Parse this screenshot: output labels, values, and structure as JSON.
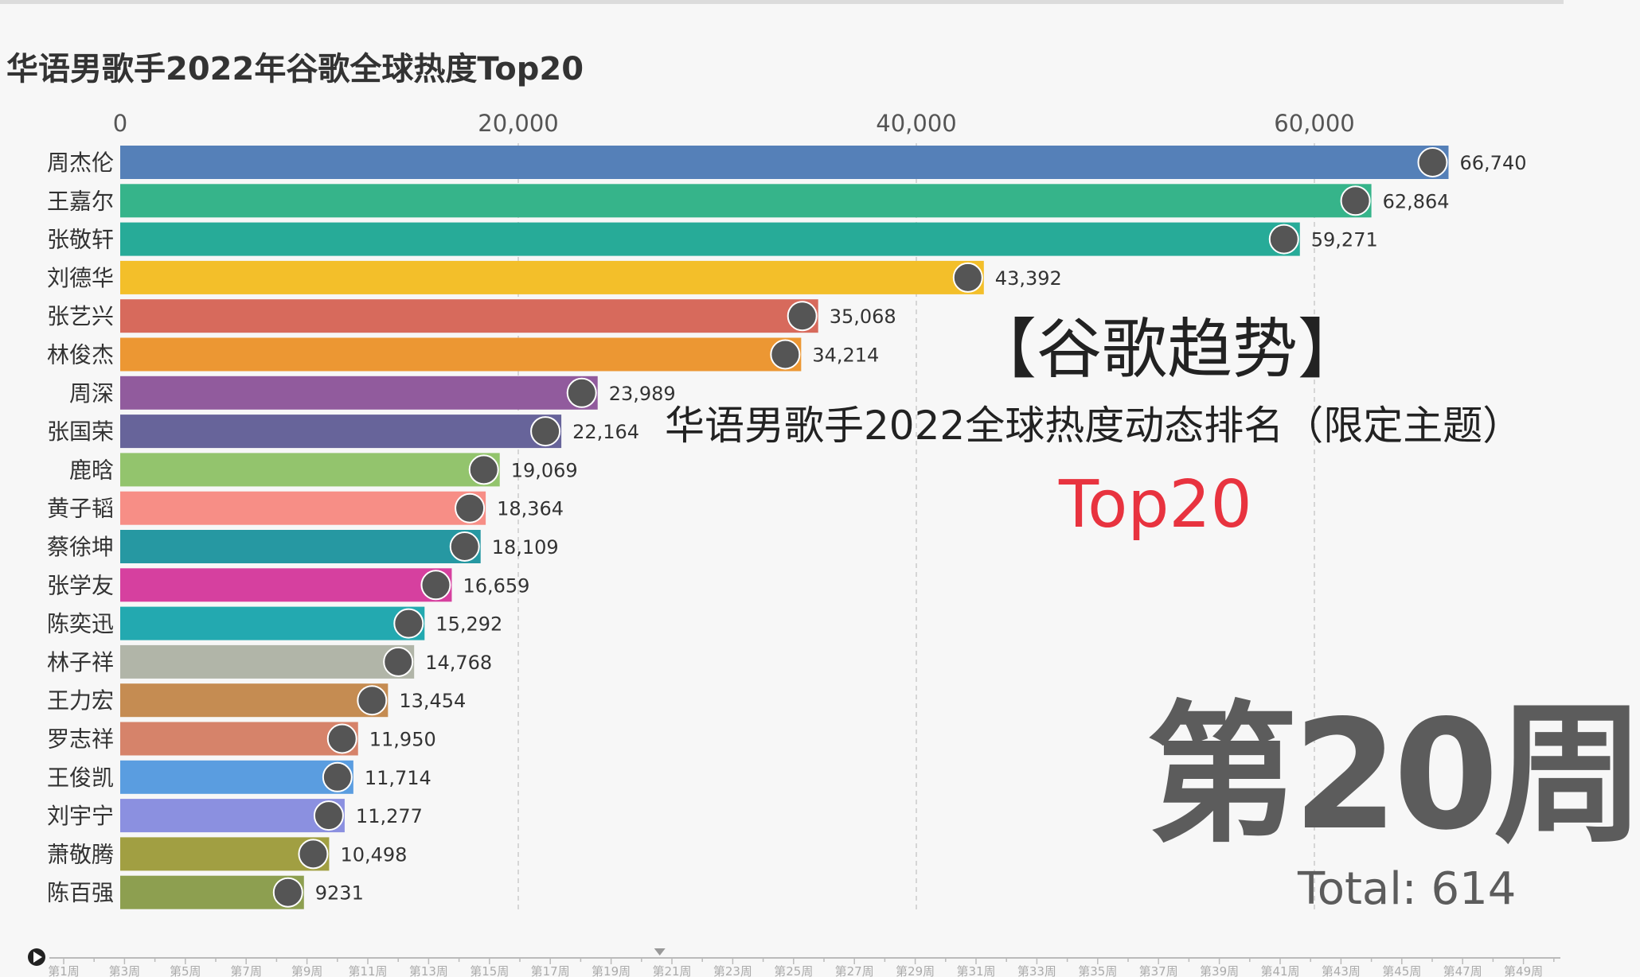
{
  "chart_data": {
    "type": "bar",
    "orientation": "horizontal",
    "title": "华语男歌手2022年谷歌全球热度Top20",
    "xlim": [
      0,
      70000
    ],
    "x_ticks": [
      0,
      20000,
      40000,
      60000
    ],
    "x_tick_labels": [
      "0",
      "20,000",
      "40,000",
      "60,000"
    ],
    "grid": true,
    "categories": [
      "周杰伦",
      "王嘉尔",
      "张敬轩",
      "刘德华",
      "张艺兴",
      "林俊杰",
      "周深",
      "张国荣",
      "鹿晗",
      "黄子韬",
      "蔡徐坤",
      "张学友",
      "陈奕迅",
      "林子祥",
      "王力宏",
      "罗志祥",
      "王俊凯",
      "刘宇宁",
      "萧敬腾",
      "陈百强"
    ],
    "values": [
      66740,
      62864,
      59271,
      43392,
      35068,
      34214,
      23989,
      22164,
      19069,
      18364,
      18109,
      16659,
      15292,
      14768,
      13454,
      11950,
      11714,
      11277,
      10498,
      9231
    ],
    "value_labels": [
      "66,740",
      "62,864",
      "59,271",
      "43,392",
      "35,068",
      "34,214",
      "23,989",
      "22,164",
      "19,069",
      "18,364",
      "18,109",
      "16,659",
      "15,292",
      "14,768",
      "13,454",
      "11,950",
      "11,714",
      "11,277",
      "10,498",
      "9231"
    ],
    "colors": [
      "#5580b8",
      "#36b48a",
      "#27ab98",
      "#f3bf2a",
      "#d76a5c",
      "#ec9733",
      "#915b9d",
      "#67649a",
      "#93c46d",
      "#f78e86",
      "#2698a2",
      "#d6409f",
      "#23a9b0",
      "#b1b5a8",
      "#c58c52",
      "#d6836a",
      "#5a9de0",
      "#8b90e0",
      "#a19f42",
      "#8d9f50"
    ],
    "annotations": [
      "【谷歌趋势】",
      "华语男歌手2022全球热度动态排名（限定主题）",
      "Top20"
    ],
    "current_period": "第20周",
    "total_label": "Total: 614"
  },
  "timeline": {
    "labels": [
      "第1周",
      "第3周",
      "第5周",
      "第7周",
      "第9周",
      "第11周",
      "第13周",
      "第15周",
      "第17周",
      "第19周",
      "第21周",
      "第23周",
      "第25周",
      "第27周",
      "第29周",
      "第31周",
      "第33周",
      "第35周",
      "第37周",
      "第39周",
      "第41周",
      "第43周",
      "第45周",
      "第47周",
      "第49周"
    ],
    "current_week": 20.6
  }
}
